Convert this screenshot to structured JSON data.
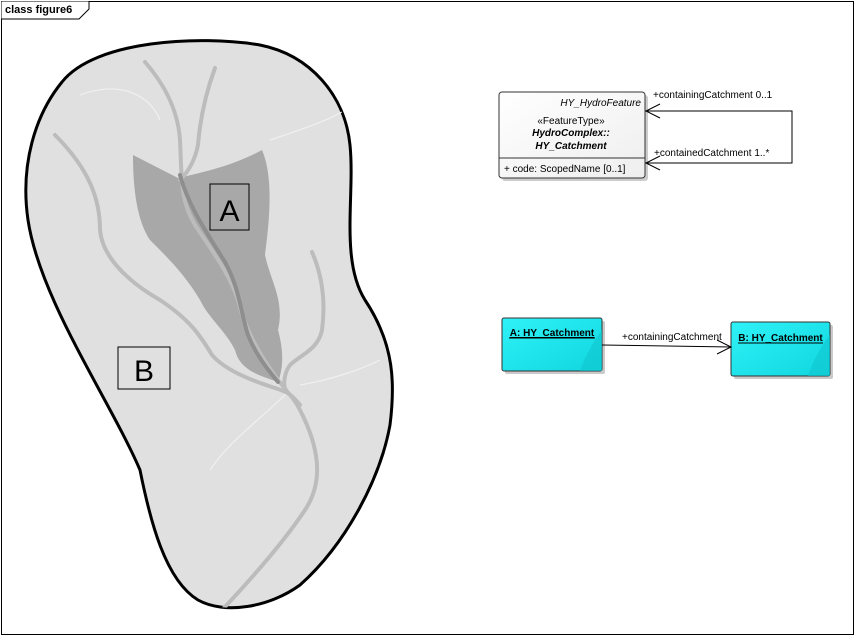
{
  "frame": {
    "title": "class figure6"
  },
  "map": {
    "label_a": "A",
    "label_b": "B"
  },
  "uml_class": {
    "parent_name": "HY_HydroFeature",
    "stereotype": "«FeatureType»",
    "package_line": "HydroComplex::",
    "class_name": "HY_Catchment",
    "attribute": "+   code: ScopedName [0..1]",
    "assoc_upper": "+containingCatchment 0..1",
    "assoc_lower": "+containedCatchment 1..*"
  },
  "instances": {
    "a_label": "A: HY_Catchment",
    "b_label": "B: HY_Catchment",
    "link_label": "+containingCatchment"
  },
  "colors": {
    "catchment_fill": "#e0e0e0",
    "inner_fill": "#a6a6a6",
    "stream": "#b8b8b8",
    "instance_fill": "#1fe9ef"
  }
}
